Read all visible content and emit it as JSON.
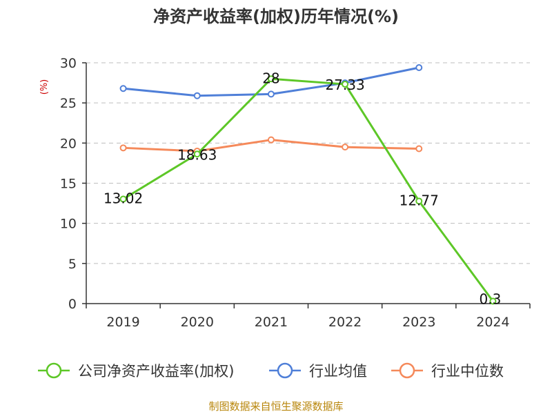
{
  "chart_data": {
    "type": "line",
    "title": "净资产收益率(加权)历年情况(%)",
    "ylabel": "(%)",
    "xlabel": "",
    "categories": [
      "2019",
      "2020",
      "2021",
      "2022",
      "2023",
      "2024"
    ],
    "ylim": [
      0,
      30
    ],
    "yticks": [
      0,
      5,
      10,
      15,
      20,
      25,
      30
    ],
    "grid": true,
    "legend_position": "bottom",
    "series": [
      {
        "name": "公司净资产收益率(加权)",
        "color": "#5dc727",
        "values": [
          13.02,
          18.63,
          28,
          27.33,
          12.77,
          0.3
        ],
        "labels": [
          "13.02",
          "18.63",
          "28",
          "27.33",
          "12.77",
          "0.3"
        ]
      },
      {
        "name": "行业均值",
        "color": "#4f7fd8",
        "values": [
          26.8,
          25.9,
          26.1,
          27.5,
          29.4,
          null
        ]
      },
      {
        "name": "行业中位数",
        "color": "#f5895a",
        "values": [
          19.4,
          19.0,
          20.4,
          19.5,
          19.3,
          null
        ]
      }
    ]
  },
  "footer": {
    "source": "制图数据来自恒生聚源数据库"
  }
}
